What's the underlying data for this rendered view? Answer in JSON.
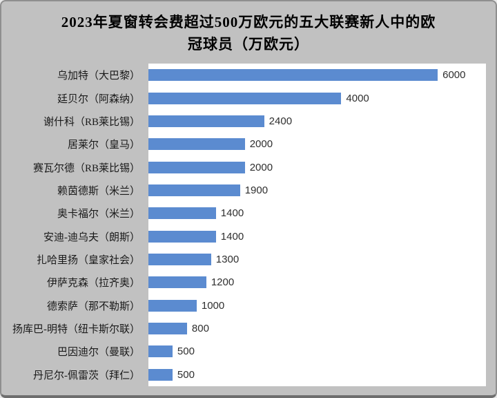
{
  "title": {
    "line1": "2023年夏窗转会费超过500万欧元的五大联赛新人中的欧",
    "line2": "冠球员（万欧元）"
  },
  "chart_data": {
    "type": "bar",
    "orientation": "horizontal",
    "title": "2023年夏窗转会费超过500万欧元的五大联赛新人中的欧冠球员（万欧元）",
    "unit": "万欧元",
    "categories": [
      "乌加特（大巴黎）",
      "廷贝尔（阿森纳）",
      "谢什科（RB莱比锡）",
      "居莱尔（皇马）",
      "赛瓦尔德（RB莱比锡）",
      "赖茵德斯（米兰）",
      "奥卡福尔（米兰）",
      "安迪-迪乌夫（朗斯）",
      "扎哈里扬（皇家社会）",
      "伊萨克森（拉齐奥）",
      "德索萨（那不勒斯）",
      "扬库巴-明特（纽卡斯尔联）",
      "巴因迪尔（曼联）",
      "丹尼尔-佩雷茨（拜仁）"
    ],
    "values": [
      6000,
      4000,
      2400,
      2000,
      2000,
      1900,
      1400,
      1400,
      1300,
      1200,
      1000,
      800,
      500,
      500
    ],
    "xlim": [
      0,
      7000
    ],
    "grid": false,
    "legend": false,
    "value_labels": true,
    "bar_color": "#5B8BD0",
    "background_color": "#C1C1C1",
    "plot_background": "#FFFFFF",
    "value_label_color": "#2E2E2E",
    "category_label_color": "#1A1A1A",
    "title_color": "#000000"
  }
}
